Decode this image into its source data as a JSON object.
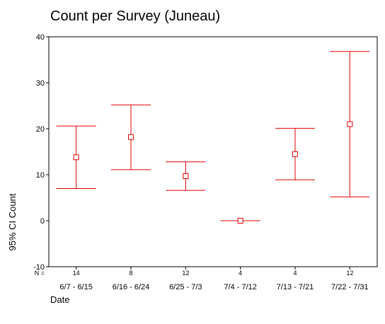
{
  "chart_data": {
    "type": "errorbar",
    "title": "Count per Survey (Juneau)",
    "xlabel": "Date",
    "ylabel": "95% CI Count",
    "ylim": [
      -10,
      40
    ],
    "yticks": [
      -10,
      0,
      10,
      20,
      30,
      40
    ],
    "n_label": "N =",
    "grid": false,
    "color": "#e00000",
    "categories": [
      "6/7 - 6/15",
      "6/16 - 6/24",
      "6/25 - 7/3",
      "7/4 - 7/12",
      "7/13 - 7/21",
      "7/22 - 7/31"
    ],
    "n": [
      14,
      8,
      12,
      4,
      4,
      12
    ],
    "mean": [
      13.8,
      18.2,
      9.7,
      0,
      14.5,
      21.0
    ],
    "lower": [
      7.0,
      11.1,
      6.6,
      0,
      8.9,
      5.2
    ],
    "upper": [
      20.6,
      25.2,
      12.8,
      0,
      20.1,
      36.8
    ]
  }
}
